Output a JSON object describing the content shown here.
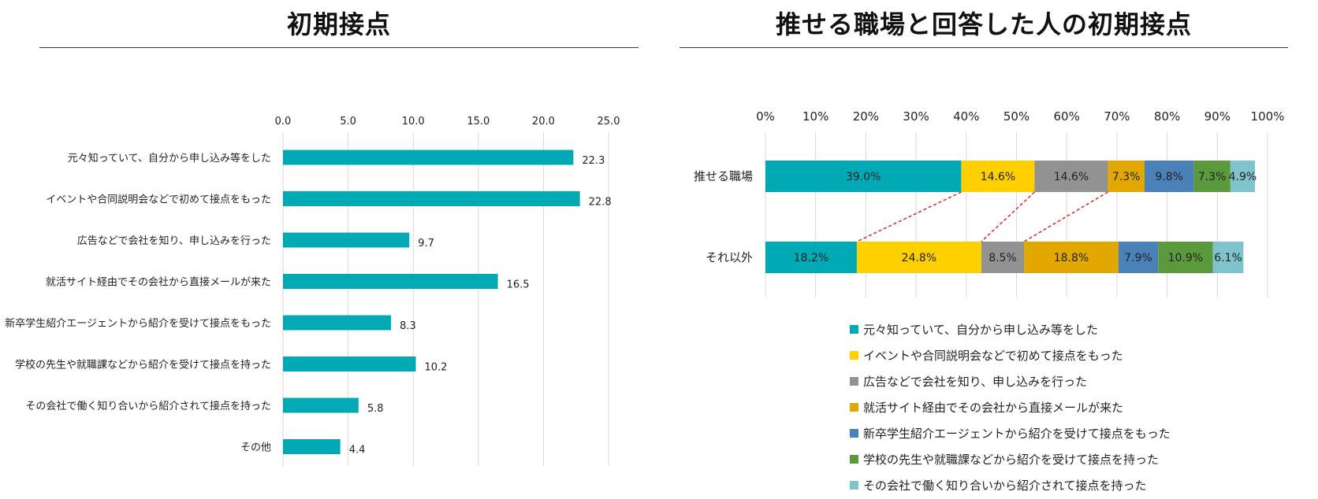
{
  "chart_data": [
    {
      "type": "bar",
      "orientation": "horizontal",
      "title": "初期接点",
      "categories": [
        "元々知っていて、自分から申し込み等をした",
        "イベントや合同説明会などで初めて接点をもった",
        "広告などで会社を知り、申し込みを行った",
        "就活サイト経由でその会社から直接メールが来た",
        "新卒学生紹介エージェントから紹介を受けて接点をもった",
        "学校の先生や就職課などから紹介を受けて接点を持った",
        "その会社で働く知り合いから紹介されて接点を持った",
        "その他"
      ],
      "values": [
        22.3,
        22.8,
        9.7,
        16.5,
        8.3,
        10.2,
        5.8,
        4.4
      ],
      "value_labels": [
        "22.3",
        "22.8",
        "9.7",
        "16.5",
        "8.3",
        "10.2",
        "5.8",
        "4.4"
      ],
      "xlim": [
        0,
        25
      ],
      "ticks": [
        0,
        5,
        10,
        15,
        20,
        25
      ],
      "tick_labels": [
        "0.0",
        "5.0",
        "10.0",
        "15.0",
        "20.0",
        "25.0"
      ],
      "color": "#00AAB5",
      "grid": true
    },
    {
      "type": "bar",
      "orientation": "horizontal",
      "stacked": "percent",
      "title": "推せる職場と回答した人の初期接点",
      "categories": [
        "推せる職場",
        "それ以外"
      ],
      "xlim": [
        0,
        100
      ],
      "ticks": [
        0,
        10,
        20,
        30,
        40,
        50,
        60,
        70,
        80,
        90,
        100
      ],
      "tick_labels": [
        "0%",
        "10%",
        "20%",
        "30%",
        "40%",
        "50%",
        "60%",
        "70%",
        "80%",
        "90%",
        "100%"
      ],
      "series": [
        {
          "name": "元々知っていて、自分から申し込み等をした",
          "color": "#00AAB5",
          "values": [
            39.0,
            18.2
          ],
          "labels": [
            "39.0%",
            "18.2%"
          ]
        },
        {
          "name": "イベントや合同説明会などで初めて接点をもった",
          "color": "#FFD000",
          "values": [
            14.6,
            24.8
          ],
          "labels": [
            "14.6%",
            "24.8%"
          ]
        },
        {
          "name": "広告などで会社を知り、申し込みを行った",
          "color": "#929292",
          "values": [
            14.6,
            8.5
          ],
          "labels": [
            "14.6%",
            "8.5%"
          ]
        },
        {
          "name": "就活サイト経由でその会社から直接メールが来た",
          "color": "#E2A800",
          "values": [
            7.3,
            18.8
          ],
          "labels": [
            "7.3%",
            "18.8%"
          ]
        },
        {
          "name": "新卒学生紹介エージェントから紹介を受けて接点をもった",
          "color": "#4A82B8",
          "values": [
            9.8,
            7.9
          ],
          "labels": [
            "9.8%",
            "7.9%"
          ]
        },
        {
          "name": "学校の先生や就職課などから紹介を受けて接点を持った",
          "color": "#5A9A3C",
          "values": [
            7.3,
            10.9
          ],
          "labels": [
            "7.3%",
            "10.9%"
          ]
        },
        {
          "name": "その会社で働く知り合いから紹介されて接点を持った",
          "color": "#7FC4CC",
          "values": [
            4.9,
            6.1
          ],
          "labels": [
            "4.9%",
            "6.1%"
          ]
        }
      ],
      "connector_color": "#E8231E",
      "legend": "bottom",
      "grid": true
    }
  ]
}
